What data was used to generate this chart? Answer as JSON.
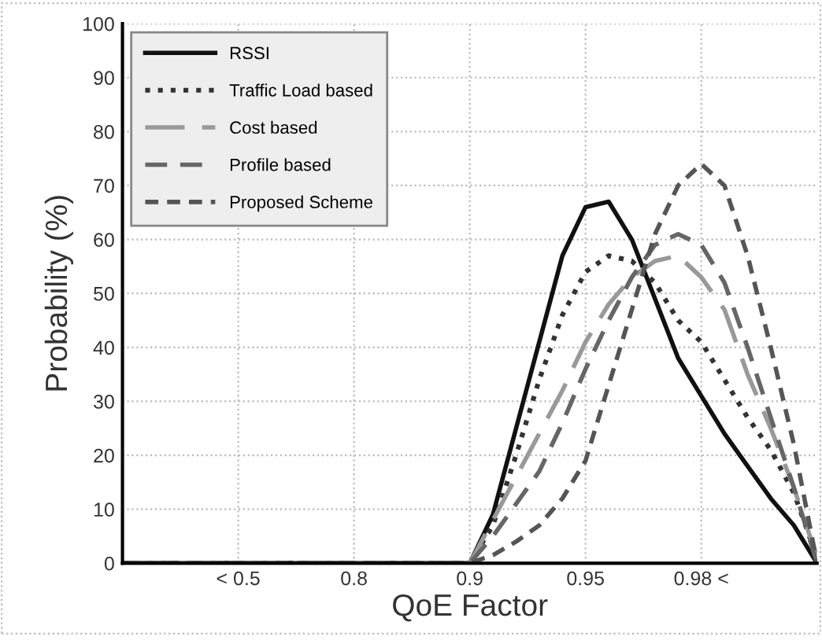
{
  "chart_data": {
    "type": "line",
    "xlabel": "QoE Factor",
    "ylabel": "Probability (%)",
    "categories": [
      null,
      null,
      null,
      null,
      null,
      "< 0.5",
      null,
      null,
      null,
      null,
      "0.8",
      null,
      null,
      null,
      null,
      "0.9",
      null,
      null,
      null,
      null,
      "0.95",
      null,
      null,
      null,
      null,
      "0.98 <",
      null,
      null,
      null,
      null,
      null
    ],
    "ylim": [
      0,
      100
    ],
    "yticks": [
      0,
      10,
      20,
      30,
      40,
      50,
      60,
      70,
      80,
      90,
      100
    ],
    "grid": true,
    "legend": "top left",
    "marker": "none",
    "series": [
      {
        "name": "RSSI",
        "color": "#111111",
        "line_style": "solid",
        "values": [
          0,
          0,
          0,
          0,
          0,
          0,
          0,
          0,
          0,
          0,
          0,
          0,
          0,
          0,
          0,
          0,
          9,
          25,
          41,
          57,
          66,
          67,
          60,
          49,
          38,
          31,
          24,
          18,
          12,
          7,
          0
        ]
      },
      {
        "name": "Traffic Load based",
        "color": "#333333",
        "line_style": "dotted",
        "values": [
          0,
          0,
          0,
          0,
          0,
          0,
          0,
          0,
          0,
          0,
          0,
          0,
          0,
          0,
          0,
          0,
          7,
          20,
          34,
          46,
          54,
          57,
          56,
          52,
          45,
          41,
          34,
          27,
          21,
          13,
          1
        ]
      },
      {
        "name": "Cost based",
        "color": "#999999",
        "line_style": "dashed",
        "values": [
          0,
          0,
          0,
          0,
          0,
          0,
          0,
          0,
          0,
          0,
          0,
          0,
          0,
          0,
          0,
          0,
          8,
          16,
          24,
          32,
          41,
          48,
          53,
          56,
          57,
          53,
          47,
          35,
          25,
          14,
          1
        ]
      },
      {
        "name": "Profile based",
        "color": "#666666",
        "line_style": "dashed",
        "values": [
          0,
          0,
          0,
          0,
          0,
          0,
          0,
          0,
          0,
          0,
          0,
          0,
          0,
          0,
          0,
          0,
          5,
          11,
          17,
          26,
          36,
          45,
          53,
          59,
          61,
          59,
          52,
          40,
          27,
          14,
          0
        ]
      },
      {
        "name": "Proposed Scheme",
        "color": "#555555",
        "line_style": "dashed",
        "values": [
          0,
          0,
          0,
          0,
          0,
          0,
          0,
          0,
          0,
          0,
          0,
          0,
          0,
          0,
          0,
          0,
          1.5,
          4,
          7,
          12,
          19,
          33,
          47,
          61,
          70,
          74,
          70,
          57,
          40,
          22,
          0
        ]
      }
    ]
  }
}
